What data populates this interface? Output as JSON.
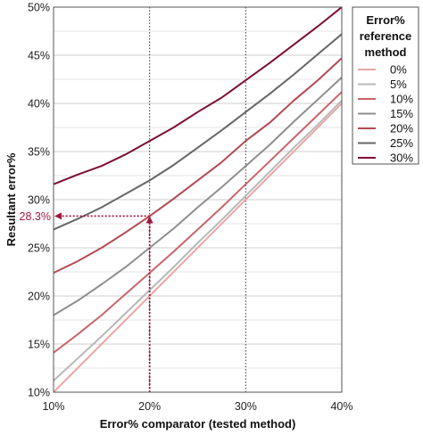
{
  "chart_data": {
    "type": "line",
    "xlabel": "Error% comparator (tested method)",
    "ylabel": "Resultant error%",
    "xlim": [
      10,
      40
    ],
    "ylim": [
      10,
      50
    ],
    "xticks": [
      "10%",
      "20%",
      "30%",
      "40%"
    ],
    "yticks": [
      "10%",
      "15%",
      "20%",
      "25%",
      "30%",
      "35%",
      "40%",
      "45%",
      "50%"
    ],
    "x_gridlines": [
      20,
      30
    ],
    "legend": {
      "title_lines": [
        "Error%",
        "reference",
        "method"
      ],
      "placement": "right"
    },
    "x": [
      10,
      12.5,
      15,
      17.5,
      20,
      22.5,
      25,
      27.5,
      30,
      32.5,
      35,
      37.5,
      40
    ],
    "series": [
      {
        "name": "0%",
        "ref": 0,
        "color": "#e9a7a7",
        "values": [
          10.0,
          12.5,
          15.0,
          17.5,
          20.0,
          22.5,
          25.0,
          27.5,
          30.0,
          32.5,
          35.0,
          37.5,
          40.0
        ]
      },
      {
        "name": "5%",
        "ref": 5,
        "color": "#b8b8b8",
        "values": [
          11.2,
          13.5,
          15.8,
          18.2,
          20.6,
          23.0,
          25.5,
          27.9,
          30.4,
          32.9,
          35.4,
          37.8,
          40.3
        ]
      },
      {
        "name": "10%",
        "ref": 10,
        "color": "#c8656b",
        "values": [
          14.1,
          16.0,
          18.0,
          20.2,
          22.4,
          24.6,
          26.9,
          29.2,
          31.6,
          34.0,
          36.4,
          38.8,
          41.2
        ]
      },
      {
        "name": "15%",
        "ref": 15,
        "color": "#8e8e8e",
        "values": [
          18.0,
          19.5,
          21.2,
          23.0,
          25.0,
          27.0,
          29.2,
          31.3,
          33.5,
          35.7,
          38.1,
          40.4,
          42.7
        ]
      },
      {
        "name": "20%",
        "ref": 20,
        "color": "#b24a54",
        "values": [
          22.4,
          23.6,
          25.0,
          26.6,
          28.3,
          30.1,
          32.0,
          33.9,
          36.1,
          38.0,
          40.3,
          42.4,
          44.7
        ]
      },
      {
        "name": "25%",
        "ref": 25,
        "color": "#666666",
        "values": [
          26.9,
          28.0,
          29.2,
          30.6,
          32.0,
          33.6,
          35.4,
          37.2,
          39.1,
          41.0,
          43.0,
          45.1,
          47.2
        ]
      },
      {
        "name": "30%",
        "ref": 30,
        "color": "#7d0f35",
        "values": [
          31.6,
          32.6,
          33.5,
          34.7,
          36.1,
          37.5,
          39.1,
          40.6,
          42.4,
          44.2,
          46.1,
          48.0,
          50.0
        ]
      }
    ],
    "annotation": {
      "label": "28.3%",
      "x": 20,
      "y": 28.3,
      "color": "#a0173f"
    }
  }
}
